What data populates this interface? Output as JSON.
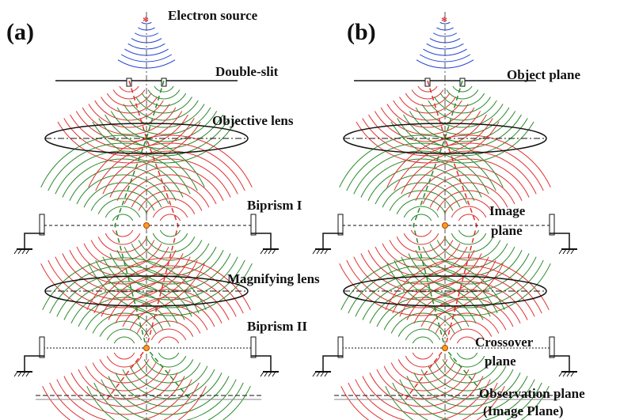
{
  "panel_a": {
    "label": "(a)",
    "electron_source": "Electron source",
    "double_slit": "Double-slit",
    "objective_lens": "Objective lens",
    "biprism_1": "Biprism I",
    "magnifying_lens": "Magnifying lens",
    "biprism_2": "Biprism II"
  },
  "panel_b": {
    "label": "(b)",
    "object_plane": "Object plane",
    "image_plane_line1": "Image",
    "image_plane_line2": "plane",
    "crossover_line1": "Crossover",
    "crossover_line2": "plane",
    "observation_plane": "Observation plane",
    "observation_plane_note": "(Image Plane)"
  }
}
